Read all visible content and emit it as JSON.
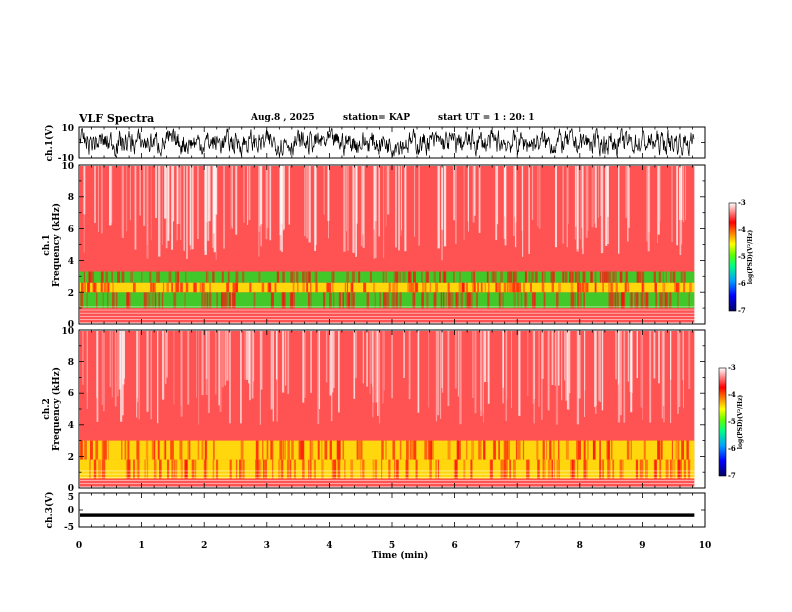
{
  "header": {
    "title": "VLF Spectra",
    "date": "Aug.8 , 2025",
    "station": "station= KAP",
    "start_ut": "start UT = 1 : 20: 1"
  },
  "colors": {
    "spec_high": "#ff1010",
    "spec_mid": "#ffee00",
    "spec_low": "#22dd22",
    "colorbar": [
      "#000060",
      "#0000ff",
      "#00a0ff",
      "#00ff80",
      "#60ff00",
      "#ffff00",
      "#ff8000",
      "#ff0000",
      "#ffffff"
    ]
  },
  "chart_data": [
    {
      "type": "line",
      "name": "ch1-waveform",
      "ylabel": "ch.1(V)",
      "ylim": [
        -10,
        10
      ],
      "yticks": [
        "10",
        "-10"
      ],
      "x_range_min": [
        0,
        9.83
      ],
      "envelope": "noise, mostly between -8 and +8 V"
    },
    {
      "type": "heatmap",
      "name": "ch1-spectrogram",
      "ylabel": "ch.1\nFrequency (kHz)",
      "ylabel_lines": [
        "ch.1",
        "Frequency (kHz)"
      ],
      "ylim": [
        0,
        10
      ],
      "yticks": [
        "0",
        "2",
        "4",
        "6",
        "8",
        "10"
      ],
      "x_range_min": [
        0,
        9.83
      ],
      "bands_khz": [
        {
          "from": 0.0,
          "to": 0.9,
          "level": "high"
        },
        {
          "from": 1.0,
          "to": 2.0,
          "level": "low"
        },
        {
          "from": 2.0,
          "to": 2.6,
          "level": "mid"
        },
        {
          "from": 2.6,
          "to": 3.3,
          "level": "low"
        },
        {
          "from": 3.3,
          "to": 4.3,
          "level": "high"
        },
        {
          "from": 4.3,
          "to": 10.0,
          "level": "high"
        }
      ],
      "colorbar": {
        "label": "log(PSD)(V²/Hz)",
        "range": [
          -7,
          -3
        ],
        "ticks": [
          "-3",
          "-4",
          "-5",
          "-6",
          "-7"
        ]
      }
    },
    {
      "type": "heatmap",
      "name": "ch2-spectrogram",
      "ylabel": "ch.2\nFrequency (kHz)",
      "ylabel_lines": [
        "ch.2",
        "Frequency (kHz)"
      ],
      "ylim": [
        0,
        10
      ],
      "yticks": [
        "0",
        "2",
        "4",
        "6",
        "8",
        "10"
      ],
      "x_range_min": [
        0,
        9.83
      ],
      "bands_khz": [
        {
          "from": 0.0,
          "to": 0.6,
          "level": "high"
        },
        {
          "from": 0.6,
          "to": 1.8,
          "level": "mid"
        },
        {
          "from": 1.8,
          "to": 3.0,
          "level": "mid"
        },
        {
          "from": 3.0,
          "to": 10.0,
          "level": "high"
        }
      ],
      "colorbar": {
        "label": "log(PSD)(V²/Hz)",
        "range": [
          -7,
          -3
        ],
        "ticks": [
          "-3",
          "-4",
          "-5",
          "-6",
          "-7"
        ]
      }
    },
    {
      "type": "line",
      "name": "ch3-waveform",
      "ylabel": "ch.3(V)",
      "ylim": [
        -5,
        5
      ],
      "yticks": [
        "5",
        "0",
        "-5"
      ],
      "x_range_min": [
        0,
        9.83
      ],
      "envelope": "thin band around -1.5 V"
    }
  ],
  "x_axis": {
    "label": "Time (min)",
    "ticks": [
      "0",
      "1",
      "2",
      "3",
      "4",
      "5",
      "6",
      "7",
      "8",
      "9",
      "10"
    ],
    "range": [
      0,
      10
    ]
  }
}
